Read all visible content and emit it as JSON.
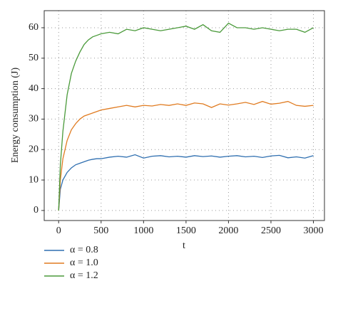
{
  "chart_data": {
    "type": "line",
    "xlabel": "t",
    "ylabel": "Energy consumption (J)",
    "x": [
      0,
      20,
      50,
      100,
      150,
      200,
      250,
      300,
      350,
      400,
      450,
      500,
      600,
      700,
      800,
      900,
      1000,
      1100,
      1200,
      1300,
      1400,
      1500,
      1600,
      1700,
      1800,
      1900,
      2000,
      2100,
      2200,
      2300,
      2400,
      2500,
      2600,
      2700,
      2800,
      2900,
      3000
    ],
    "series": [
      {
        "name": "α = 0.8",
        "color": "#2f6fb0",
        "values": [
          0,
          7,
          10,
          12.5,
          14,
          15,
          15.5,
          16,
          16.5,
          16.8,
          17,
          17,
          17.5,
          17.8,
          17.5,
          18.3,
          17.2,
          17.8,
          18,
          17.6,
          17.8,
          17.5,
          18,
          17.7,
          17.9,
          17.5,
          17.8,
          18,
          17.6,
          17.8,
          17.4,
          17.9,
          18.1,
          17.3,
          17.6,
          17.2,
          18
        ]
      },
      {
        "name": "α = 1.0",
        "color": "#e07b20",
        "values": [
          0,
          10,
          17,
          23,
          26.5,
          28.5,
          30,
          31,
          31.5,
          32,
          32.5,
          33,
          33.5,
          34,
          34.5,
          34,
          34.5,
          34.3,
          34.8,
          34.5,
          35,
          34.5,
          35.3,
          35,
          33.8,
          35,
          34.6,
          35,
          35.5,
          34.8,
          35.8,
          34.9,
          35.2,
          35.8,
          34.5,
          34.2,
          34.5
        ]
      },
      {
        "name": "α = 1.2",
        "color": "#4a9a3a",
        "values": [
          0,
          15,
          26,
          38,
          45,
          49,
          52,
          54.5,
          56,
          57,
          57.5,
          58,
          58.5,
          58,
          59.5,
          59,
          60,
          59.5,
          59,
          59.5,
          60,
          60.5,
          59.5,
          61,
          59,
          58.5,
          61.5,
          60,
          60,
          59.5,
          60,
          59.5,
          59,
          59.5,
          59.5,
          58.5,
          60
        ]
      }
    ],
    "xlim": [
      -170,
      3130
    ],
    "xticks": [
      0,
      500,
      1000,
      1500,
      2000,
      2500,
      3000
    ],
    "ylim": [
      -3.3,
      65.6
    ],
    "yticks": [
      0,
      10,
      20,
      30,
      40,
      50,
      60
    ],
    "grid": true,
    "legend": "bottom"
  }
}
